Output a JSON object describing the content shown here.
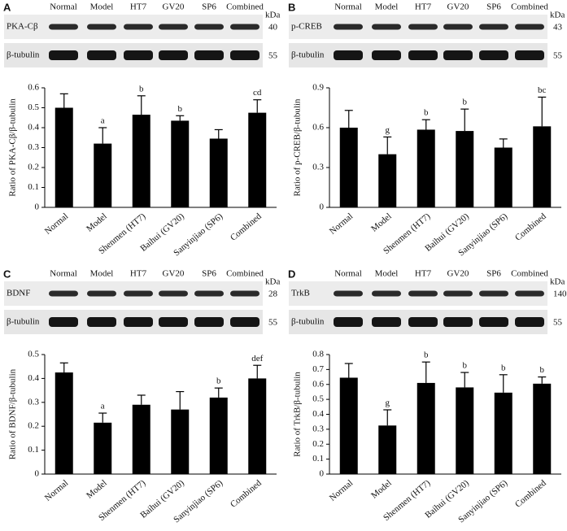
{
  "chart_data": [
    {
      "type": "bar",
      "panel": "A",
      "blot": {
        "lanes": [
          "Normal",
          "Model",
          "HT7",
          "GV20",
          "SP6",
          "Combined"
        ],
        "unit": "kDa",
        "rows": [
          {
            "protein": "PKA-Cβ",
            "mw": 40
          },
          {
            "protein": "β-tubulin",
            "mw": 55
          }
        ]
      },
      "ylabel": "Ratio of PKA-Cβ/β-tubulin",
      "categories": [
        "Normal",
        "Model",
        "Shenmen (HT7)",
        "Baihui (GV20)",
        "Sanyinjiao (SP6)",
        "Combined"
      ],
      "values": [
        0.5,
        0.32,
        0.465,
        0.435,
        0.345,
        0.475
      ],
      "errors": [
        0.07,
        0.08,
        0.095,
        0.025,
        0.045,
        0.065
      ],
      "annotations": [
        null,
        "a",
        "b",
        "b",
        null,
        "cd"
      ],
      "color": "#000000",
      "ylim": [
        0,
        0.6
      ],
      "yticks": [
        0,
        0.1,
        0.2,
        0.3,
        0.4,
        0.5,
        0.6
      ]
    },
    {
      "type": "bar",
      "panel": "B",
      "blot": {
        "lanes": [
          "Normal",
          "Model",
          "HT7",
          "GV20",
          "SP6",
          "Combined"
        ],
        "unit": "kDa",
        "rows": [
          {
            "protein": "p-CREB",
            "mw": 43
          },
          {
            "protein": "β-tubulin",
            "mw": 55
          }
        ]
      },
      "ylabel": "Ratio of p-CREB/β-tubulin",
      "categories": [
        "Normal",
        "Model",
        "Shenmen (HT7)",
        "Baihui (GV20)",
        "Sanyinjiao (SP6)",
        "Combined"
      ],
      "values": [
        0.6,
        0.4,
        0.585,
        0.575,
        0.45,
        0.61
      ],
      "errors": [
        0.13,
        0.13,
        0.075,
        0.165,
        0.065,
        0.22
      ],
      "annotations": [
        null,
        "g",
        "b",
        "b",
        null,
        "bc"
      ],
      "color": "#000000",
      "ylim": [
        0,
        0.9
      ],
      "yticks": [
        0,
        0.3,
        0.6,
        0.9
      ]
    },
    {
      "type": "bar",
      "panel": "C",
      "blot": {
        "lanes": [
          "Normal",
          "Model",
          "HT7",
          "GV20",
          "SP6",
          "Combined"
        ],
        "unit": "kDa",
        "rows": [
          {
            "protein": "BDNF",
            "mw": 28
          },
          {
            "protein": "β-tubulin",
            "mw": 55
          }
        ]
      },
      "ylabel": "Ratio of BDNF/β-tubulin",
      "categories": [
        "Normal",
        "Model",
        "Shenmen (HT7)",
        "Baihui (GV20)",
        "Sanyinjiao (SP6)",
        "Combined"
      ],
      "values": [
        0.425,
        0.215,
        0.29,
        0.27,
        0.32,
        0.4
      ],
      "errors": [
        0.04,
        0.04,
        0.04,
        0.075,
        0.04,
        0.055
      ],
      "annotations": [
        null,
        "a",
        null,
        null,
        "b",
        "def"
      ],
      "color": "#000000",
      "ylim": [
        0,
        0.5
      ],
      "yticks": [
        0,
        0.1,
        0.2,
        0.3,
        0.4,
        0.5
      ]
    },
    {
      "type": "bar",
      "panel": "D",
      "blot": {
        "lanes": [
          "Normal",
          "Model",
          "HT7",
          "GV20",
          "SP6",
          "Combined"
        ],
        "unit": "kDa",
        "rows": [
          {
            "protein": "TrkB",
            "mw": 140
          },
          {
            "protein": "β-tubulin",
            "mw": 55
          }
        ]
      },
      "ylabel": "Ratio of TrkB/β-tubulin",
      "categories": [
        "Normal",
        "Model",
        "Shenmen (HT7)",
        "Baihui (GV20)",
        "Sanyinjiao (SP6)",
        "Combined"
      ],
      "values": [
        0.645,
        0.325,
        0.61,
        0.58,
        0.545,
        0.605
      ],
      "errors": [
        0.095,
        0.105,
        0.14,
        0.1,
        0.12,
        0.045
      ],
      "annotations": [
        null,
        "g",
        "b",
        "b",
        "b",
        "b"
      ],
      "color": "#000000",
      "ylim": [
        0,
        0.8
      ],
      "yticks": [
        0,
        0.1,
        0.2,
        0.3,
        0.4,
        0.5,
        0.6,
        0.7,
        0.8
      ]
    }
  ]
}
